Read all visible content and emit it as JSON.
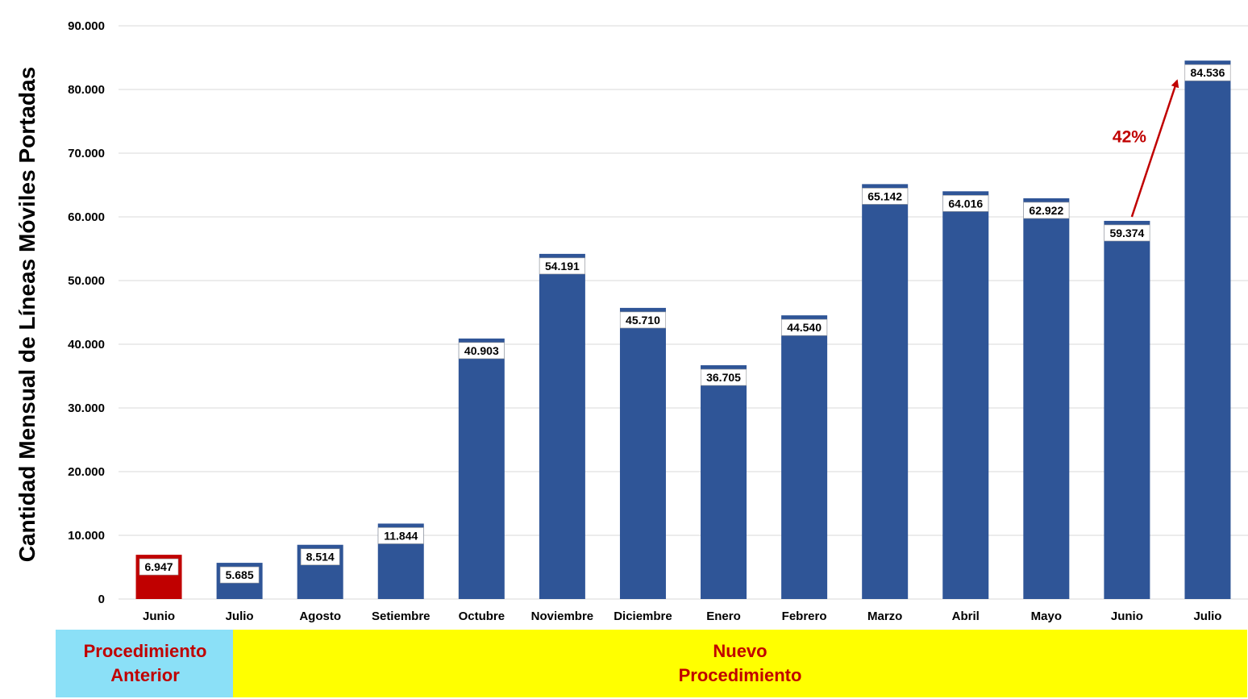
{
  "chart_data": {
    "type": "bar",
    "title": "",
    "ylabel": "Cantidad Mensual de Líneas Móviles Portadas",
    "xlabel": "",
    "ylim": [
      0,
      90000
    ],
    "yticks": [
      "0",
      "10.000",
      "20.000",
      "30.000",
      "40.000",
      "50.000",
      "60.000",
      "70.000",
      "80.000",
      "90.000"
    ],
    "ytick_values": [
      0,
      10000,
      20000,
      30000,
      40000,
      50000,
      60000,
      70000,
      80000,
      90000
    ],
    "grid": true,
    "categories": [
      "Junio",
      "Julio",
      "Agosto",
      "Setiembre",
      "Octubre",
      "Noviembre",
      "Diciembre",
      "Enero",
      "Febrero",
      "Marzo",
      "Abril",
      "Mayo",
      "Junio",
      "Julio"
    ],
    "values": [
      6947,
      5685,
      8514,
      11844,
      40903,
      54191,
      45710,
      36705,
      44540,
      65142,
      64016,
      62922,
      59374,
      84536
    ],
    "value_labels": [
      "6.947",
      "5.685",
      "8.514",
      "11.844",
      "40.903",
      "54.191",
      "45.710",
      "36.705",
      "44.540",
      "65.142",
      "64.016",
      "62.922",
      "59.374",
      "84.536"
    ],
    "colors": {
      "highlight": "#c00000",
      "default": "#2f5597",
      "grid": "#d9d9d9"
    },
    "highlight_index": 0,
    "annotation": {
      "text": "42%",
      "from_index": 12,
      "to_index": 13,
      "color": "#c00000"
    }
  },
  "procedure_bands": {
    "old": {
      "line1": "Procedimiento",
      "line2": "Anterior"
    },
    "new": {
      "line1": "Nuevo",
      "line2": "Procedimiento"
    }
  }
}
